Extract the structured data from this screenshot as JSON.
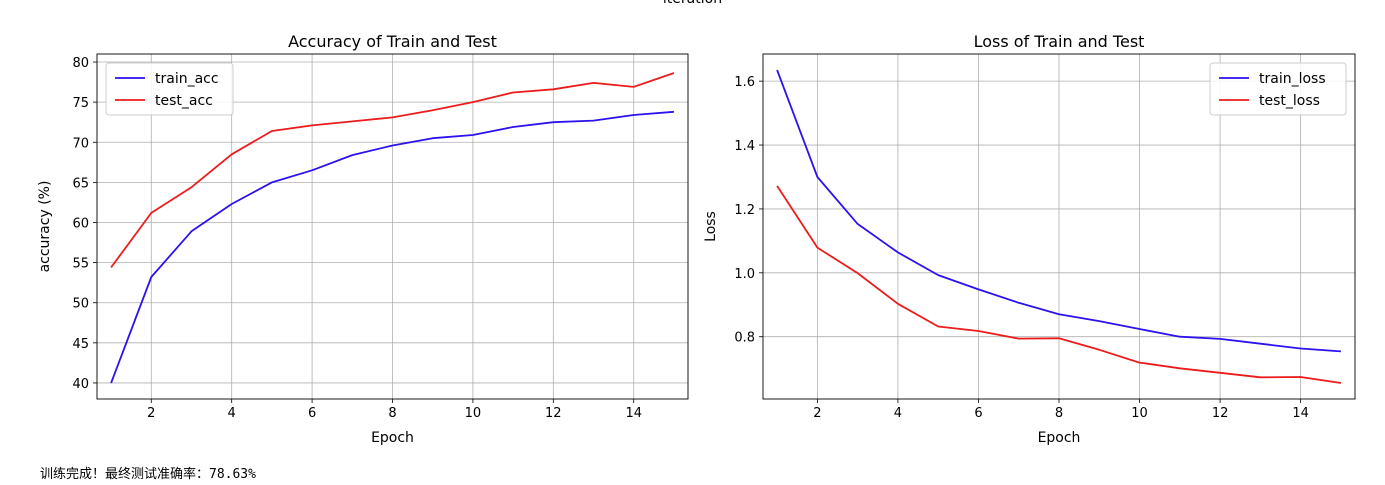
{
  "figure": {
    "cut_title": "iteration"
  },
  "status_text": "训练完成！最终测试准确率：78.63%",
  "chart_data": [
    {
      "type": "line",
      "title": "Accuracy of Train and Test",
      "xlabel": "Epoch",
      "ylabel": "accuracy (%)",
      "x": [
        1,
        2,
        3,
        4,
        5,
        6,
        7,
        8,
        9,
        10,
        11,
        12,
        13,
        14,
        15
      ],
      "xlim": [
        0.65,
        15.35
      ],
      "ylim": [
        38,
        81
      ],
      "xticks": [
        2,
        4,
        6,
        8,
        10,
        12,
        14
      ],
      "yticks": [
        40,
        45,
        50,
        55,
        60,
        65,
        70,
        75,
        80
      ],
      "grid": true,
      "legend_position": "upper-left",
      "series": [
        {
          "name": "train_acc",
          "color": "#2c12ee",
          "values": [
            40.0,
            53.2,
            58.9,
            62.3,
            65.0,
            66.5,
            68.4,
            69.6,
            70.5,
            70.9,
            71.9,
            72.5,
            72.7,
            73.4,
            73.8
          ]
        },
        {
          "name": "test_acc",
          "color": "#ec1c1c",
          "values": [
            54.4,
            61.2,
            64.4,
            68.5,
            71.4,
            72.1,
            72.6,
            73.1,
            74.0,
            75.0,
            76.2,
            76.6,
            77.4,
            76.9,
            78.63
          ]
        }
      ]
    },
    {
      "type": "line",
      "title": "Loss of Train and Test",
      "xlabel": "Epoch",
      "ylabel": "Loss",
      "x": [
        1,
        2,
        3,
        4,
        5,
        6,
        7,
        8,
        9,
        10,
        11,
        12,
        13,
        14,
        15
      ],
      "xlim": [
        0.65,
        15.35
      ],
      "ylim": [
        0.605,
        1.685
      ],
      "xticks": [
        2,
        4,
        6,
        8,
        10,
        12,
        14
      ],
      "yticks": [
        0.8,
        1.0,
        1.2,
        1.4,
        1.6
      ],
      "grid": true,
      "legend_position": "upper-right",
      "series": [
        {
          "name": "train_loss",
          "color": "#2c12ee",
          "values": [
            1.635,
            1.3,
            1.153,
            1.064,
            0.993,
            0.948,
            0.906,
            0.87,
            0.849,
            0.824,
            0.8,
            0.793,
            0.778,
            0.763,
            0.754
          ]
        },
        {
          "name": "test_loss",
          "color": "#ec1c1c",
          "values": [
            1.272,
            1.079,
            0.999,
            0.903,
            0.832,
            0.818,
            0.794,
            0.795,
            0.759,
            0.719,
            0.701,
            0.687,
            0.673,
            0.674,
            0.655
          ]
        }
      ]
    }
  ]
}
